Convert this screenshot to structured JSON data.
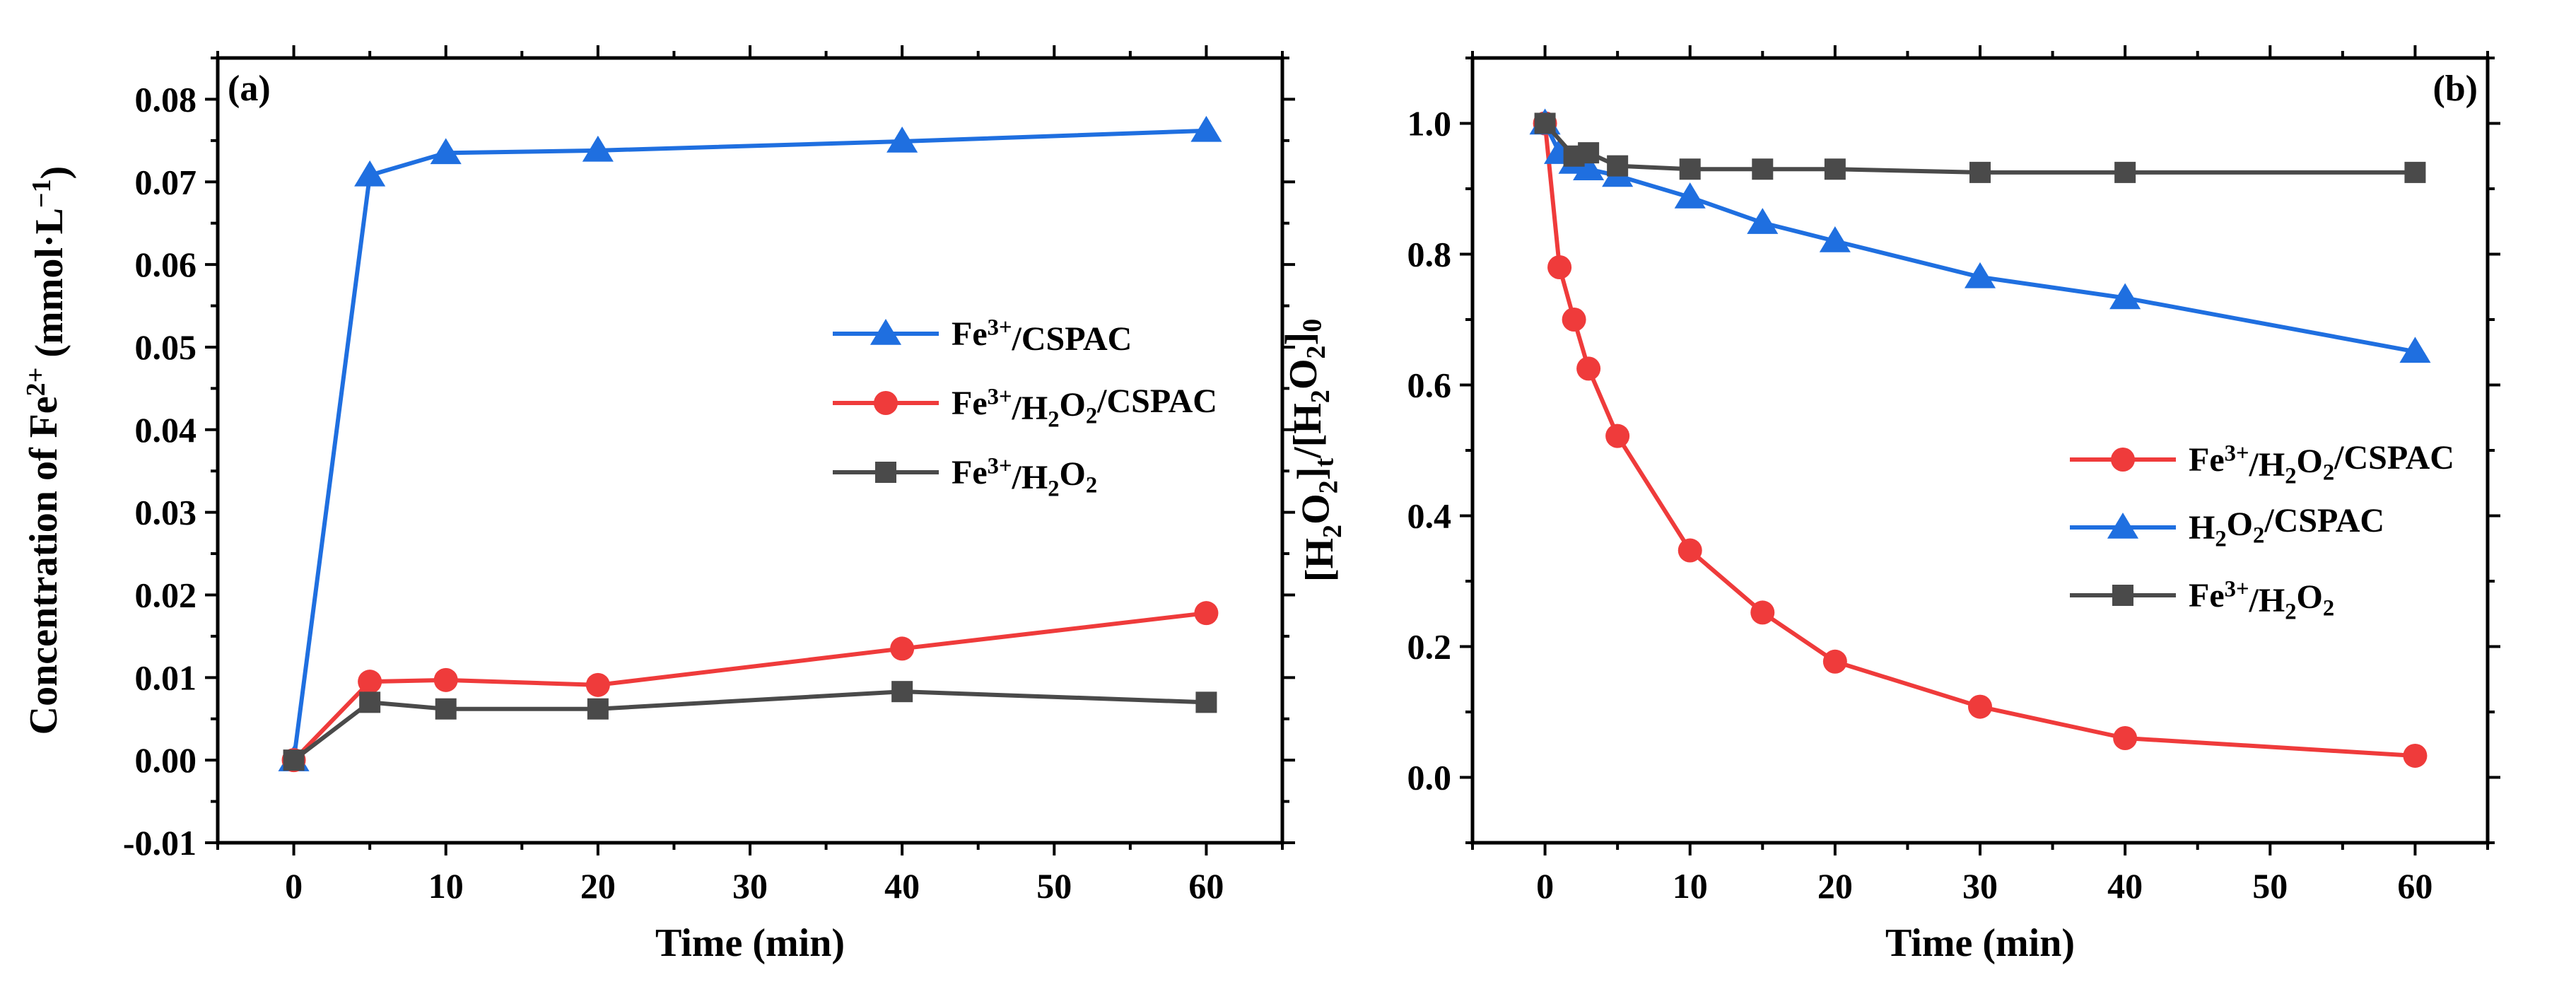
{
  "chart_data": [
    {
      "panel": "(a)",
      "type": "line",
      "xlabel": "Time (min)",
      "ylabel": {
        "main": "Concentration of Fe",
        "sup": "2+",
        "unit": " (mmol·L",
        "unit_sup": "−1",
        "close": ")"
      },
      "xlim": [
        -5,
        65
      ],
      "ylim": [
        -0.01,
        0.085
      ],
      "x_ticks": [
        0,
        10,
        20,
        30,
        40,
        50,
        60
      ],
      "y_ticks": [
        -0.01,
        0.0,
        0.01,
        0.02,
        0.03,
        0.04,
        0.05,
        0.06,
        0.07,
        0.08
      ],
      "y_tick_labels": [
        "-0.01",
        "0.00",
        "0.01",
        "0.02",
        "0.03",
        "0.04",
        "0.05",
        "0.06",
        "0.07",
        "0.08"
      ],
      "legend_position": "right",
      "series": [
        {
          "name": "Fe3+/CSPAC",
          "label_parts": [
            [
              "Fe",
              ""
            ],
            [
              "3+",
              "sup"
            ],
            [
              "/CSPAC",
              ""
            ]
          ],
          "color": "#1f6fe0",
          "marker": "triangle",
          "x": [
            0,
            5,
            10,
            20,
            40,
            60
          ],
          "y": [
            0.0,
            0.0708,
            0.0735,
            0.0738,
            0.0749,
            0.0762
          ]
        },
        {
          "name": "Fe3+/H2O2/CSPAC",
          "label_parts": [
            [
              "Fe",
              ""
            ],
            [
              "3+",
              "sup"
            ],
            [
              "/H",
              ""
            ],
            [
              "2",
              "sub"
            ],
            [
              "O",
              ""
            ],
            [
              "2",
              "sub"
            ],
            [
              "/CSPAC",
              ""
            ]
          ],
          "color": "#ef3b3b",
          "marker": "circle",
          "x": [
            0,
            5,
            10,
            20,
            40,
            60
          ],
          "y": [
            0.0,
            0.0095,
            0.0097,
            0.0091,
            0.0135,
            0.0178
          ]
        },
        {
          "name": "Fe3+/H2O2",
          "label_parts": [
            [
              "Fe",
              ""
            ],
            [
              "3+",
              "sup"
            ],
            [
              "/H",
              ""
            ],
            [
              "2",
              "sub"
            ],
            [
              "O",
              ""
            ],
            [
              "2",
              "sub"
            ]
          ],
          "color": "#4a4a4a",
          "marker": "square",
          "x": [
            0,
            5,
            10,
            20,
            40,
            60
          ],
          "y": [
            0.0,
            0.007,
            0.0062,
            0.0062,
            0.0083,
            0.007
          ]
        }
      ]
    },
    {
      "panel": "(b)",
      "type": "line",
      "xlabel": "Time (min)",
      "ylabel": {
        "parts": [
          [
            "[H",
            ""
          ],
          [
            "2",
            "sub"
          ],
          [
            "O",
            ""
          ],
          [
            "2",
            "sub"
          ],
          [
            "]",
            ""
          ],
          [
            "t",
            "sub"
          ],
          [
            "/[H",
            ""
          ],
          [
            "2",
            "sub"
          ],
          [
            "O",
            ""
          ],
          [
            "2",
            "sub"
          ],
          [
            "]",
            ""
          ],
          [
            "0",
            "sub"
          ]
        ]
      },
      "xlim": [
        -5,
        65
      ],
      "ylim": [
        -0.1,
        1.1
      ],
      "x_ticks": [
        0,
        10,
        20,
        30,
        40,
        50,
        60
      ],
      "y_ticks": [
        0.0,
        0.2,
        0.4,
        0.6,
        0.8,
        1.0
      ],
      "y_tick_labels": [
        "0.0",
        "0.2",
        "0.4",
        "0.6",
        "0.8",
        "1.0"
      ],
      "legend_position": "right",
      "series": [
        {
          "name": "Fe3+/H2O2/CSPAC",
          "label_parts": [
            [
              "Fe",
              ""
            ],
            [
              "3+",
              "sup"
            ],
            [
              "/H",
              ""
            ],
            [
              "2",
              "sub"
            ],
            [
              "O",
              ""
            ],
            [
              "2",
              "sub"
            ],
            [
              "/CSPAC",
              ""
            ]
          ],
          "color": "#ef3b3b",
          "marker": "circle",
          "x": [
            0,
            1,
            2,
            3,
            5,
            10,
            15,
            20,
            30,
            40,
            60
          ],
          "y": [
            1.0,
            0.78,
            0.7,
            0.625,
            0.522,
            0.347,
            0.252,
            0.177,
            0.108,
            0.06,
            0.033
          ]
        },
        {
          "name": "H2O2/CSPAC",
          "label_parts": [
            [
              "H",
              ""
            ],
            [
              "2",
              "sub"
            ],
            [
              "O",
              ""
            ],
            [
              "2",
              "sub"
            ],
            [
              "/CSPAC",
              ""
            ]
          ],
          "color": "#1f6fe0",
          "marker": "triangle",
          "x": [
            0,
            1,
            2,
            3,
            5,
            10,
            15,
            20,
            30,
            40,
            60
          ],
          "y": [
            1.0,
            0.955,
            0.94,
            0.93,
            0.92,
            0.887,
            0.848,
            0.82,
            0.765,
            0.733,
            0.651
          ]
        },
        {
          "name": "Fe3+/H2O2",
          "label_parts": [
            [
              "Fe",
              ""
            ],
            [
              "3+",
              "sup"
            ],
            [
              "/H",
              ""
            ],
            [
              "2",
              "sub"
            ],
            [
              "O",
              ""
            ],
            [
              "2",
              "sub"
            ]
          ],
          "color": "#4a4a4a",
          "marker": "square",
          "x": [
            0,
            2,
            3,
            5,
            10,
            15,
            20,
            30,
            40,
            60
          ],
          "y": [
            1.0,
            0.95,
            0.955,
            0.935,
            0.93,
            0.93,
            0.93,
            0.925,
            0.925,
            0.925
          ]
        }
      ]
    }
  ]
}
